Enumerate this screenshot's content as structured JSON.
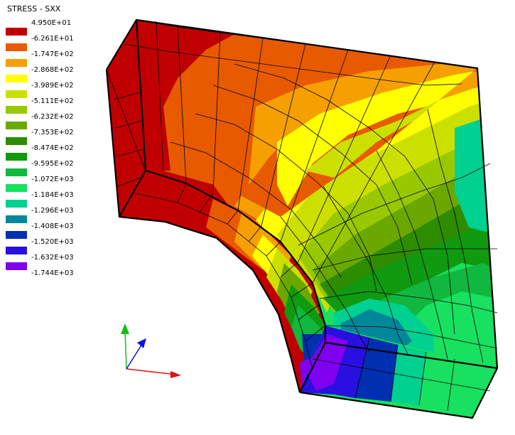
{
  "title": "STRESS - SXX",
  "legend": [
    {
      "label": "4.950E+01",
      "color": "#c00000"
    },
    {
      "label": "-6.261E+01",
      "color": "#e85a00"
    },
    {
      "label": "-1.747E+02",
      "color": "#f5a000"
    },
    {
      "label": "-2.868E+02",
      "color": "#ffff00"
    },
    {
      "label": "-3.989E+02",
      "color": "#cce000"
    },
    {
      "label": "-5.111E+02",
      "color": "#98c800"
    },
    {
      "label": "-6.232E+02",
      "color": "#6aa800"
    },
    {
      "label": "-7.353E+02",
      "color": "#2e8c00"
    },
    {
      "label": "-8.474E+02",
      "color": "#109a10"
    },
    {
      "label": "-9.595E+02",
      "color": "#10b840"
    },
    {
      "label": "-1.072E+03",
      "color": "#18e060"
    },
    {
      "label": "-1.184E+03",
      "color": "#00d090"
    },
    {
      "label": "-1.296E+03",
      "color": "#00889a"
    },
    {
      "label": "-1.408E+03",
      "color": "#0030b0"
    },
    {
      "label": "-1.520E+03",
      "color": "#2a10e0"
    },
    {
      "label": "-1.632E+03",
      "color": "#8000f0"
    },
    {
      "label": "-1.744E+03",
      "color": ""
    }
  ],
  "colors": {
    "mesh_line": "#000000",
    "axis_x": "#e01010",
    "axis_y": "#10c010",
    "axis_z": "#1010e0"
  }
}
